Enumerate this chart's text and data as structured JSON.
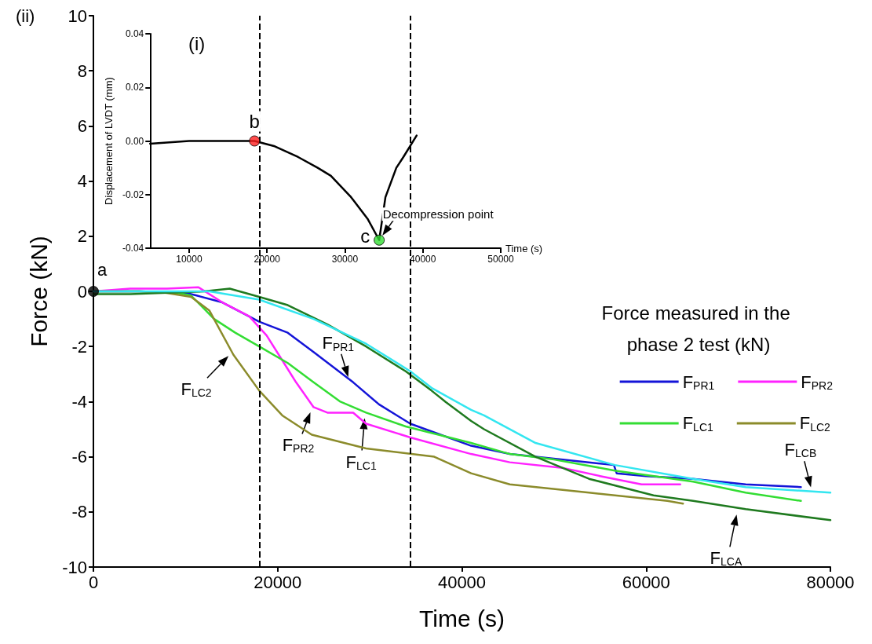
{
  "chart_data": [
    {
      "type": "line",
      "xlabel": "Time (s)",
      "ylabel": "Force (kN)",
      "legend_title": "Force measured in the phase 2 test (kN)",
      "legend": "right",
      "grid": false,
      "xlim": [
        0,
        80000
      ],
      "xticks": [
        0,
        20000,
        40000,
        60000,
        80000
      ],
      "ylim": [
        -10,
        10
      ],
      "yticks": [
        -10,
        -8,
        -6,
        -4,
        -2,
        0,
        2,
        4,
        6,
        8,
        10
      ],
      "series": [
        {
          "name": "F$_{PR1}$",
          "color": "#1414d8",
          "x": [
            0,
            5000,
            10000,
            11200,
            14000,
            18000,
            21100,
            23900,
            28200,
            31000,
            34400,
            41000,
            45200,
            56500,
            56800,
            60000,
            65100,
            70800,
            76800
          ],
          "values": [
            0,
            0,
            -0.05,
            -0.15,
            -0.4,
            -1.1,
            -1.5,
            -2.2,
            -3.3,
            -4.1,
            -4.8,
            -5.6,
            -5.9,
            -6.3,
            -6.6,
            -6.7,
            -6.8,
            -7.0,
            -7.1
          ]
        },
        {
          "name": "F$_{PR2}$",
          "color": "#ff22ff",
          "x": [
            0,
            4000,
            8000,
            11400,
            14000,
            16900,
            18800,
            20500,
            22000,
            23900,
            25400,
            28200,
            29600,
            34400,
            41000,
            45200,
            50900,
            55000,
            59500,
            63700
          ],
          "values": [
            0,
            0.1,
            0.1,
            0.15,
            -0.4,
            -0.9,
            -1.6,
            -2.5,
            -3.3,
            -4.2,
            -4.4,
            -4.4,
            -4.8,
            -5.3,
            -5.9,
            -6.2,
            -6.4,
            -6.7,
            -7.0,
            -7.0
          ]
        },
        {
          "name": "F$_{LC1}$",
          "color": "#33dd33",
          "x": [
            0,
            5000,
            9000,
            10600,
            13100,
            15400,
            18000,
            21100,
            23900,
            26800,
            29600,
            33900,
            41000,
            45200,
            50000,
            56600,
            65100,
            70800,
            76800
          ],
          "values": [
            0,
            0,
            -0.05,
            -0.15,
            -1.0,
            -1.5,
            -2.0,
            -2.6,
            -3.3,
            -4.0,
            -4.4,
            -4.9,
            -5.5,
            -5.9,
            -6.1,
            -6.5,
            -6.9,
            -7.3,
            -7.6
          ]
        },
        {
          "name": "F$_{LC2}$",
          "color": "#8b8b2b",
          "x": [
            0,
            5000,
            7800,
            10600,
            12600,
            15200,
            18000,
            20500,
            23700,
            29600,
            37000,
            41000,
            45200,
            53800,
            62300,
            64000
          ],
          "values": [
            0,
            0,
            -0.05,
            -0.2,
            -0.7,
            -2.3,
            -3.6,
            -4.5,
            -5.2,
            -5.7,
            -6.0,
            -6.6,
            -7.0,
            -7.3,
            -7.6,
            -7.7
          ]
        },
        {
          "color": "#1f7a1f",
          "x": [
            0,
            4000,
            8000,
            12000,
            14800,
            18000,
            21100,
            25400,
            29600,
            33900,
            36700,
            38200,
            41000,
            42400,
            48000,
            53800,
            60800,
            65100,
            70800,
            80000
          ],
          "values": [
            -0.1,
            -0.1,
            -0.05,
            0,
            0.1,
            -0.2,
            -0.5,
            -1.2,
            -2.0,
            -2.9,
            -3.6,
            -4.0,
            -4.7,
            -5.0,
            -6.0,
            -6.8,
            -7.4,
            -7.6,
            -7.9,
            -8.3
          ]
        },
        {
          "color": "#33e6f0",
          "x": [
            0,
            6000,
            12600,
            18000,
            23900,
            29600,
            34400,
            36700,
            41000,
            42400,
            48000,
            56600,
            65100,
            70800,
            80000
          ],
          "values": [
            0,
            0,
            0,
            -0.3,
            -1.0,
            -1.9,
            -2.9,
            -3.5,
            -4.3,
            -4.5,
            -5.5,
            -6.3,
            -6.8,
            -7.1,
            -7.3
          ]
        },
        {
          "type": "scatter",
          "color": "#000000",
          "x": [
            0
          ],
          "values": [
            0
          ]
        }
      ],
      "ref_lines": [
        {
          "axis": "x",
          "value": 18000,
          "line_style": "dashed",
          "color": "#000000"
        },
        {
          "axis": "x",
          "value": 34400,
          "line_style": "dashed",
          "color": "#000000"
        }
      ],
      "annotations": [
        "(ii)",
        {
          "text": "a",
          "x": 0,
          "y": 0
        },
        {
          "text": "F$_{PR1}$",
          "x": 27840,
          "y": -3.3
        },
        {
          "text": "F$_{PR2}$",
          "x": 23770,
          "y": -4.2
        },
        {
          "text": "F$_{LC1}$",
          "x": 29490,
          "y": -4.4
        },
        {
          "text": "F$_{LC2}$",
          "x": 15080,
          "y": -2.2
        },
        {
          "text": "F$_{LCA}$",
          "x": 69940,
          "y": -7.9
        },
        {
          "text": "F$_{LCB}$",
          "x": 78030,
          "y": -7.3
        }
      ]
    },
    {
      "type": "line",
      "xlabel": "Time (s)",
      "ylabel": "Displacement of LVDT (mm)",
      "grid": false,
      "xlim": [
        5000,
        50000
      ],
      "xticks": [
        10000,
        20000,
        30000,
        40000,
        50000
      ],
      "ylim": [
        -0.04,
        0.04
      ],
      "yticks": [
        -0.04,
        -0.02,
        {
          "value": 0,
          "label": "0.00"
        },
        0.02,
        0.04
      ],
      "series": [
        {
          "color": "#000000",
          "x": [
            5000,
            10000,
            15000,
            18400,
            21000,
            24000,
            26500,
            28200,
            30800,
            32900,
            34400,
            35200,
            36600,
            37500,
            39200
          ],
          "values": [
            -0.001,
            0,
            0,
            0,
            -0.002,
            -0.006,
            -0.01,
            -0.013,
            -0.021,
            -0.029,
            -0.037,
            -0.021,
            -0.01,
            -0.006,
            0.002
          ]
        },
        {
          "type": "scatter",
          "color": "#ff2020",
          "x": [
            18400
          ],
          "values": [
            0
          ]
        },
        {
          "type": "scatter",
          "color": "#33dd33",
          "x": [
            34400
          ],
          "values": [
            -0.037
          ]
        }
      ],
      "annotations": [
        "(i)",
        {
          "text": "b",
          "x": 18400,
          "y": 0
        },
        {
          "text": "c",
          "x": 34400,
          "y": -0.037
        },
        {
          "text": "Decompression point",
          "x": 34400,
          "y": -0.037
        }
      ]
    }
  ]
}
